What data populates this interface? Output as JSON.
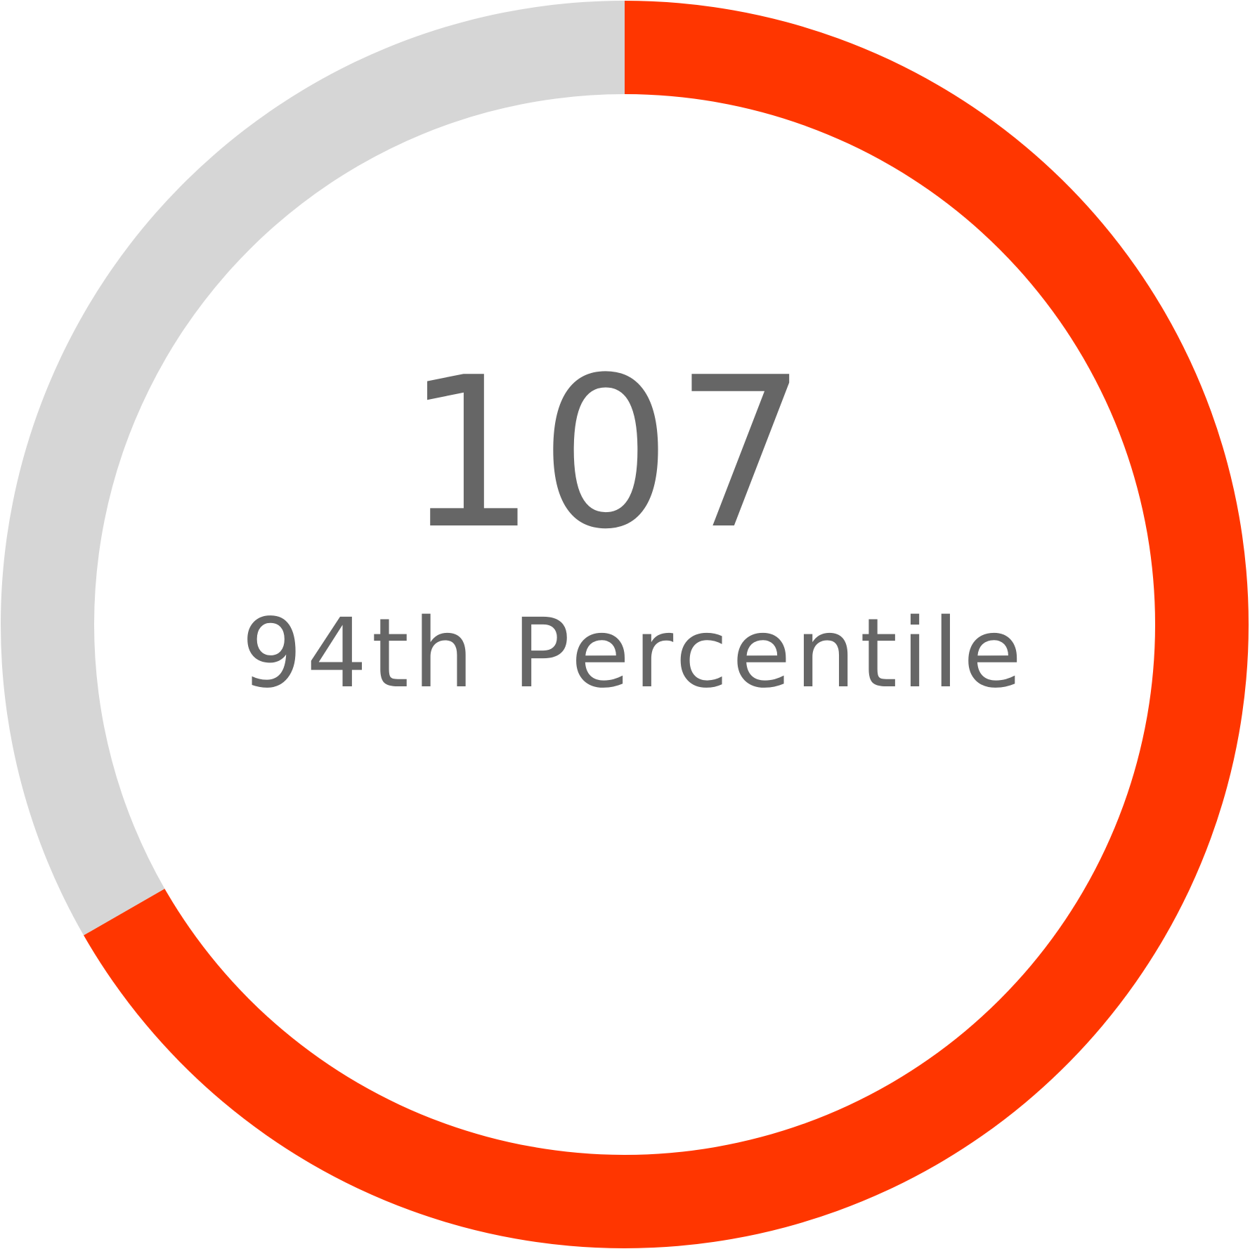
{
  "chart_data": {
    "type": "pie",
    "subtype": "donut-gauge",
    "value_label": "107",
    "caption": "94th Percentile",
    "fill_fraction": 0.667,
    "slices": [
      {
        "label": "filled",
        "value": 0.667,
        "color": "#FF3600"
      },
      {
        "label": "remaining",
        "value": 0.333,
        "color": "#D6D6D6"
      }
    ]
  },
  "colors": {
    "accent": "#FF3600",
    "track": "#D6D6D6",
    "text": "#666666",
    "background": "#FFFFFF"
  }
}
